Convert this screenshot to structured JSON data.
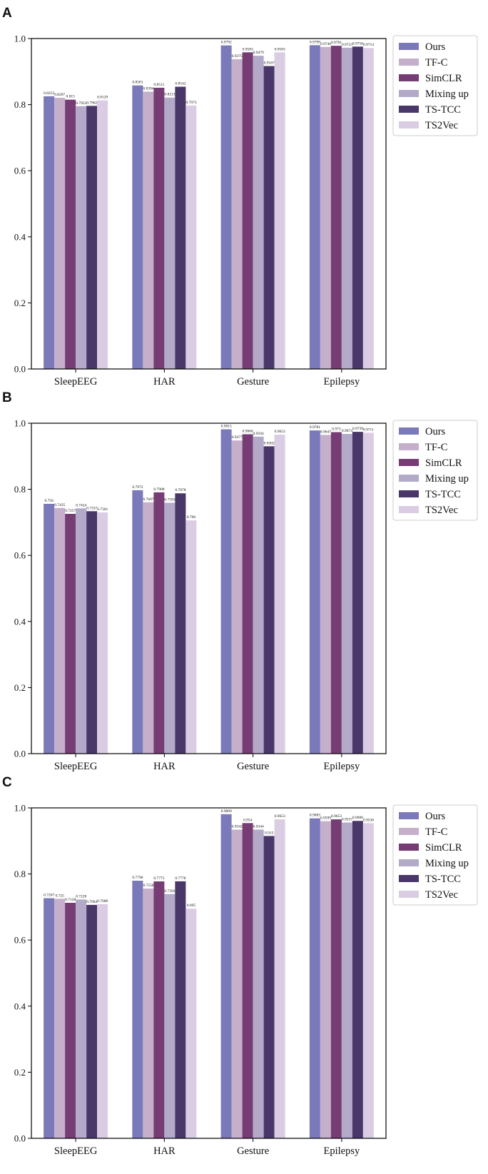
{
  "series_meta": [
    {
      "name": "Ours",
      "color": "#7a79b9"
    },
    {
      "name": "TF-C",
      "color": "#c5afcb"
    },
    {
      "name": "SimCLR",
      "color": "#763c74"
    },
    {
      "name": "Mixing up",
      "color": "#b2aac8"
    },
    {
      "name": "TS-TCC",
      "color": "#4a3769"
    },
    {
      "name": "TS2Vec",
      "color": "#dacde3"
    }
  ],
  "chart_data": [
    {
      "type": "bar",
      "panel": "A",
      "categories": [
        "SleepEEG",
        "HAR",
        "Gesture",
        "Epilepsy"
      ],
      "ylim": [
        0,
        1.0
      ],
      "yticks": [
        "0.0",
        "0.2",
        "0.4",
        "0.6",
        "0.8",
        "1.0"
      ],
      "legend_position": "outside top-right",
      "series": [
        {
          "name": "Ours",
          "values": [
            0.8253,
            0.8581,
            0.9792,
            0.9799
          ],
          "labels": [
            "0.8253",
            "0.8581",
            "0.9792",
            "0.9799"
          ]
        },
        {
          "name": "TF-C",
          "values": [
            0.8207,
            0.8394,
            0.9375,
            0.9746
          ],
          "labels": [
            "0.8207",
            "0.8394",
            "0.9375",
            "0.9746"
          ]
        },
        {
          "name": "SimCLR",
          "values": [
            0.815,
            0.8511,
            0.9583,
            0.9781
          ],
          "labels": [
            "0.815",
            "0.8511",
            "0.9583",
            "0.9781"
          ]
        },
        {
          "name": "Mixing up",
          "values": [
            0.7953,
            0.8213,
            0.9479,
            0.9723
          ],
          "labels": [
            "0.7953",
            "0.8213",
            "0.9479",
            "0.9723"
          ]
        },
        {
          "name": "TS-TCC",
          "values": [
            0.7962,
            0.8542,
            0.9167,
            0.9756
          ],
          "labels": [
            "0.7962",
            "0.8542",
            "0.9167",
            "0.9756"
          ]
        },
        {
          "name": "TS2Vec",
          "values": [
            0.8129,
            0.7973,
            0.9583,
            0.9714
          ],
          "labels": [
            "0.8129",
            "0.7973",
            "0.9583",
            "0.9714"
          ]
        }
      ]
    },
    {
      "type": "bar",
      "panel": "B",
      "categories": [
        "SleepEEG",
        "HAR",
        "Gesture",
        "Epilepsy"
      ],
      "ylim": [
        0,
        1.0
      ],
      "yticks": [
        "0.0",
        "0.2",
        "0.4",
        "0.6",
        "0.8",
        "1.0"
      ],
      "legend_position": "outside top-right",
      "series": [
        {
          "name": "Ours",
          "values": [
            0.756,
            0.7972,
            0.9815,
            0.9781
          ],
          "labels": [
            "0.756",
            "0.7972",
            "0.9815",
            "0.9781"
          ]
        },
        {
          "name": "TF-C",
          "values": [
            0.7435,
            0.7607,
            0.9477,
            0.9647
          ],
          "labels": [
            "0.7435",
            "0.7607",
            "0.9477",
            "0.9647"
          ]
        },
        {
          "name": "SimCLR",
          "values": [
            0.7257,
            0.7908,
            0.9666,
            0.973
          ],
          "labels": [
            "0.7257",
            "0.7908",
            "0.9666",
            "0.973"
          ]
        },
        {
          "name": "Mixing up",
          "values": [
            0.7424,
            0.7593,
            0.9594,
            0.9674
          ],
          "labels": [
            "0.7424",
            "0.7593",
            "0.9594",
            "0.9674"
          ]
        },
        {
          "name": "TS-TCC",
          "values": [
            0.7337,
            0.7878,
            0.9302,
            0.9739
          ],
          "labels": [
            "0.7337",
            "0.7878",
            "0.9302",
            "0.9739"
          ]
        },
        {
          "name": "TS2Vec",
          "values": [
            0.7301,
            0.706,
            0.9653,
            0.9711
          ],
          "labels": [
            "0.7301",
            "0.706",
            "0.9653",
            "0.9711"
          ]
        }
      ]
    },
    {
      "type": "bar",
      "panel": "C",
      "categories": [
        "SleepEEG",
        "HAR",
        "Gesture",
        "Epilepsy"
      ],
      "ylim": [
        0,
        1.0
      ],
      "yticks": [
        "0.0",
        "0.2",
        "0.4",
        "0.6",
        "0.8",
        "1.0"
      ],
      "legend_position": "outside top-right",
      "series": [
        {
          "name": "Ours",
          "values": [
            0.7267,
            0.7796,
            0.9809,
            0.9683
          ],
          "labels": [
            "0.7267",
            "0.7796",
            "0.9809",
            "0.9683"
          ]
        },
        {
          "name": "TF-C",
          "values": [
            0.725,
            0.7558,
            0.9342,
            0.9599
          ],
          "labels": [
            "0.725",
            "0.7558",
            "0.9342",
            "0.9599"
          ]
        },
        {
          "name": "SimCLR",
          "values": [
            0.7128,
            0.7775,
            0.954,
            0.9653
          ],
          "labels": [
            "0.7128",
            "0.7775",
            "0.954",
            "0.9653"
          ]
        },
        {
          "name": "Mixing up",
          "values": [
            0.7228,
            0.7392,
            0.9344,
            0.9557
          ],
          "labels": [
            "0.7228",
            "0.7392",
            "0.9344",
            "0.9557"
          ]
        },
        {
          "name": "TS-TCC",
          "values": [
            0.7064,
            0.7778,
            0.915,
            0.9606
          ],
          "labels": [
            "0.7064",
            "0.7778",
            "0.915",
            "0.9606"
          ]
        },
        {
          "name": "TS2Vec",
          "values": [
            0.7088,
            0.695,
            0.9653,
            0.9538
          ],
          "labels": [
            "0.7088",
            "0.695",
            "0.9653",
            "0.9538"
          ]
        }
      ]
    }
  ]
}
